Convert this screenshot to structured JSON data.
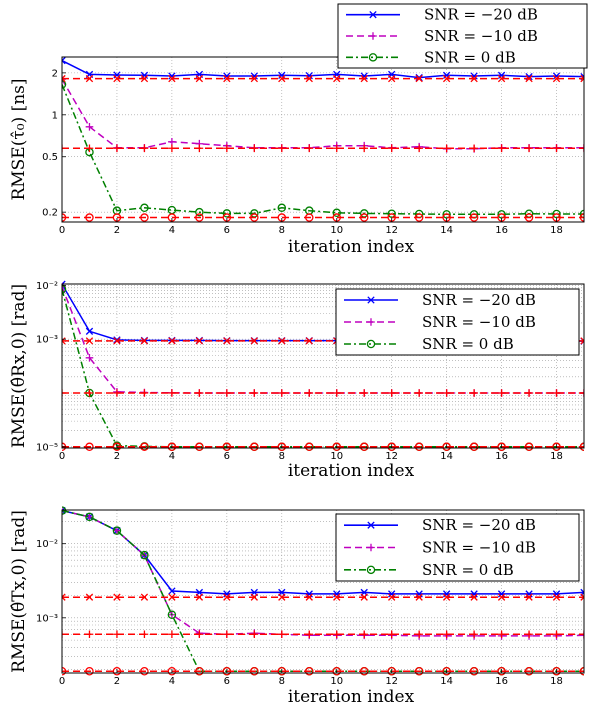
{
  "chart_data": [
    {
      "type": "line",
      "xlabel": "iteration index",
      "ylabel": "RMSE(τ̂₀) [ns]",
      "yscale": "log",
      "xlim": [
        0,
        19
      ],
      "ylim": [
        0.17,
        2.6
      ],
      "xticks": [
        "0",
        "2",
        "4",
        "6",
        "8",
        "10",
        "12",
        "14",
        "16",
        "18"
      ],
      "yticks": [
        {
          "v": 0.2,
          "label": "0.2"
        },
        {
          "v": 0.5,
          "label": "0.5"
        },
        {
          "v": 1,
          "label": "1"
        },
        {
          "v": 2,
          "label": "2"
        }
      ],
      "grid": "y-major",
      "legend_position": "top-right-outside",
      "x": [
        0,
        1,
        2,
        3,
        4,
        5,
        6,
        7,
        8,
        9,
        10,
        11,
        12,
        13,
        14,
        15,
        16,
        17,
        18,
        19
      ],
      "series": [
        {
          "name": "SNR = −20 dB",
          "color": "#0000ff",
          "dash": "solid",
          "marker": "x",
          "values": [
            2.45,
            1.95,
            1.93,
            1.92,
            1.9,
            1.95,
            1.9,
            1.9,
            1.92,
            1.91,
            1.95,
            1.9,
            1.95,
            1.85,
            1.92,
            1.9,
            1.92,
            1.88,
            1.9,
            1.88
          ]
        },
        {
          "name": "SNR = −10 dB",
          "color": "#bf00bf",
          "dash": "dashed",
          "marker": "+",
          "values": [
            1.8,
            0.82,
            0.58,
            0.58,
            0.64,
            0.62,
            0.6,
            0.58,
            0.58,
            0.58,
            0.6,
            0.6,
            0.58,
            0.59,
            0.57,
            0.57,
            0.58,
            0.58,
            0.58,
            0.58
          ]
        },
        {
          "name": "SNR = 0 dB",
          "color": "#008000",
          "dash": "dashdot",
          "marker": "o",
          "values": [
            1.65,
            0.54,
            0.205,
            0.215,
            0.207,
            0.2,
            0.196,
            0.196,
            0.215,
            0.205,
            0.198,
            0.196,
            0.195,
            0.194,
            0.193,
            0.193,
            0.193,
            0.195,
            0.194,
            0.194
          ]
        },
        {
          "name": "",
          "color": "#ff0000",
          "dash": "dashed",
          "marker": "x",
          "legend": false,
          "values": [
            1.82,
            1.82,
            1.82,
            1.82,
            1.82,
            1.82,
            1.82,
            1.82,
            1.82,
            1.82,
            1.82,
            1.82,
            1.82,
            1.82,
            1.82,
            1.82,
            1.82,
            1.82,
            1.82,
            1.82
          ]
        },
        {
          "name": "",
          "color": "#ff0000",
          "dash": "dashed",
          "marker": "+",
          "legend": false,
          "values": [
            0.575,
            0.575,
            0.575,
            0.575,
            0.575,
            0.575,
            0.575,
            0.575,
            0.575,
            0.575,
            0.575,
            0.575,
            0.575,
            0.575,
            0.575,
            0.575,
            0.575,
            0.575,
            0.575,
            0.575
          ]
        },
        {
          "name": "",
          "color": "#ff0000",
          "dash": "dashed",
          "marker": "o",
          "legend": false,
          "values": [
            0.183,
            0.183,
            0.183,
            0.183,
            0.183,
            0.183,
            0.183,
            0.183,
            0.183,
            0.183,
            0.183,
            0.183,
            0.183,
            0.183,
            0.183,
            0.183,
            0.183,
            0.183,
            0.183,
            0.183
          ]
        }
      ]
    },
    {
      "type": "line",
      "xlabel": "iteration index",
      "ylabel": "RMSE(θ̂Rx,0) [rad]",
      "yscale": "log",
      "xlim": [
        0,
        19
      ],
      "ylim": [
        9.5e-06,
        0.0106
      ],
      "xticks": [
        "0",
        "2",
        "4",
        "6",
        "8",
        "10",
        "12",
        "14",
        "16",
        "18"
      ],
      "yticks": [
        {
          "v": 1e-05,
          "label": "10⁻⁵"
        },
        {
          "v": 0.001,
          "label": "10⁻³"
        },
        {
          "v": 0.01,
          "label": "10⁻²"
        }
      ],
      "grid": "log-major-minor",
      "legend_position": "top-right",
      "x": [
        0,
        1,
        2,
        3,
        4,
        5,
        6,
        7,
        8,
        9,
        10,
        11,
        12,
        13,
        14,
        15,
        16,
        17,
        18,
        19
      ],
      "series": [
        {
          "name": "SNR = −20 dB",
          "color": "#0000ff",
          "dash": "solid",
          "marker": "x",
          "values": [
            0.0105,
            0.0014,
            0.00097,
            0.00095,
            0.00095,
            0.00095,
            0.00094,
            0.00094,
            0.00094,
            0.00094,
            0.00094,
            0.00094,
            0.00094,
            0.00094,
            0.00093,
            0.00093,
            0.00093,
            0.00093,
            0.00092,
            0.00092
          ]
        },
        {
          "name": "SNR = −10 dB",
          "color": "#bf00bf",
          "dash": "dashed",
          "marker": "+",
          "values": [
            0.0095,
            0.00045,
            0.000105,
            0.000102,
            0.000101,
            0.0001,
            0.0001,
            0.0001,
            0.0001,
            0.0001,
            0.0001,
            0.0001,
            0.0001,
            0.0001,
            0.0001,
            0.0001,
            0.0001,
            0.0001,
            0.0001,
            0.0001
          ]
        },
        {
          "name": "SNR = 0 dB",
          "color": "#008000",
          "dash": "dashdot",
          "marker": "o",
          "values": [
            0.0085,
            0.0001,
            1.05e-05,
            1.02e-05,
            1e-05,
            1e-05,
            1e-05,
            1e-05,
            1e-05,
            1e-05,
            1e-05,
            1e-05,
            1e-05,
            1e-05,
            1e-05,
            1e-05,
            1e-05,
            1e-05,
            1e-05,
            1e-05
          ]
        },
        {
          "name": "",
          "color": "#ff0000",
          "dash": "dashed",
          "marker": "x",
          "legend": false,
          "values": [
            0.00093,
            0.00093,
            0.00093,
            0.00093,
            0.00093,
            0.00093,
            0.00093,
            0.00093,
            0.00093,
            0.00093,
            0.00093,
            0.00093,
            0.00093,
            0.00093,
            0.00093,
            0.00093,
            0.00093,
            0.00093,
            0.00093,
            0.00093
          ]
        },
        {
          "name": "",
          "color": "#ff0000",
          "dash": "dashed",
          "marker": "+",
          "legend": false,
          "values": [
            0.0001,
            0.0001,
            0.0001,
            0.0001,
            0.0001,
            0.0001,
            0.0001,
            0.0001,
            0.0001,
            0.0001,
            0.0001,
            0.0001,
            0.0001,
            0.0001,
            0.0001,
            0.0001,
            0.0001,
            0.0001,
            0.0001,
            0.0001
          ]
        },
        {
          "name": "",
          "color": "#ff0000",
          "dash": "dashed",
          "marker": "o",
          "legend": false,
          "values": [
            1e-05,
            1e-05,
            1e-05,
            1e-05,
            1e-05,
            1e-05,
            1e-05,
            1e-05,
            1e-05,
            1e-05,
            1e-05,
            1e-05,
            1e-05,
            1e-05,
            1e-05,
            1e-05,
            1e-05,
            1e-05,
            1e-05,
            1e-05
          ]
        }
      ]
    },
    {
      "type": "line",
      "xlabel": "iteration index",
      "ylabel": "RMSE(θ̂Tx,0) [rad]",
      "yscale": "log",
      "xlim": [
        0,
        19
      ],
      "ylim": [
        0.00018,
        0.0285
      ],
      "xticks": [
        "0",
        "2",
        "4",
        "6",
        "8",
        "10",
        "12",
        "14",
        "16",
        "18"
      ],
      "yticks": [
        {
          "v": 0.001,
          "label": "10⁻³"
        },
        {
          "v": 0.01,
          "label": "10⁻²"
        }
      ],
      "grid": "log-major-minor",
      "legend_position": "top-right",
      "x": [
        0,
        1,
        2,
        3,
        4,
        5,
        6,
        7,
        8,
        9,
        10,
        11,
        12,
        13,
        14,
        15,
        16,
        17,
        18,
        19
      ],
      "series": [
        {
          "name": "SNR = −20 dB",
          "color": "#0000ff",
          "dash": "solid",
          "marker": "x",
          "values": [
            0.028,
            0.023,
            0.015,
            0.007,
            0.0023,
            0.0022,
            0.0021,
            0.0022,
            0.0022,
            0.0021,
            0.0021,
            0.0022,
            0.0021,
            0.0021,
            0.0021,
            0.0021,
            0.0021,
            0.0021,
            0.0021,
            0.0022
          ]
        },
        {
          "name": "SNR = −10 dB",
          "color": "#bf00bf",
          "dash": "dashed",
          "marker": "+",
          "values": [
            0.028,
            0.023,
            0.015,
            0.007,
            0.0011,
            0.00062,
            0.0006,
            0.00062,
            0.0006,
            0.00058,
            0.00058,
            0.00058,
            0.00058,
            0.00057,
            0.00057,
            0.00057,
            0.00057,
            0.00057,
            0.00057,
            0.00058
          ]
        },
        {
          "name": "SNR = 0 dB",
          "color": "#008000",
          "dash": "dashdot",
          "marker": "o",
          "values": [
            0.028,
            0.023,
            0.015,
            0.007,
            0.0011,
            0.00019,
            0.00019,
            0.00019,
            0.00019,
            0.00019,
            0.00019,
            0.00019,
            0.00019,
            0.00019,
            0.00019,
            0.00019,
            0.00019,
            0.00019,
            0.00019,
            0.00019
          ]
        },
        {
          "name": "",
          "color": "#ff0000",
          "dash": "dashed",
          "marker": "x",
          "legend": false,
          "values": [
            0.0019,
            0.0019,
            0.0019,
            0.0019,
            0.0019,
            0.0019,
            0.0019,
            0.0019,
            0.0019,
            0.0019,
            0.0019,
            0.0019,
            0.0019,
            0.0019,
            0.0019,
            0.0019,
            0.0019,
            0.0019,
            0.0019,
            0.0019
          ]
        },
        {
          "name": "",
          "color": "#ff0000",
          "dash": "dashed",
          "marker": "+",
          "legend": false,
          "values": [
            0.0006,
            0.0006,
            0.0006,
            0.0006,
            0.0006,
            0.0006,
            0.0006,
            0.0006,
            0.0006,
            0.0006,
            0.0006,
            0.0006,
            0.0006,
            0.0006,
            0.0006,
            0.0006,
            0.0006,
            0.0006,
            0.0006,
            0.0006
          ]
        },
        {
          "name": "",
          "color": "#ff0000",
          "dash": "dashed",
          "marker": "o",
          "legend": false,
          "values": [
            0.00019,
            0.00019,
            0.00019,
            0.00019,
            0.00019,
            0.00019,
            0.00019,
            0.00019,
            0.00019,
            0.00019,
            0.00019,
            0.00019,
            0.00019,
            0.00019,
            0.00019,
            0.00019,
            0.00019,
            0.00019,
            0.00019,
            0.00019
          ]
        }
      ]
    }
  ]
}
